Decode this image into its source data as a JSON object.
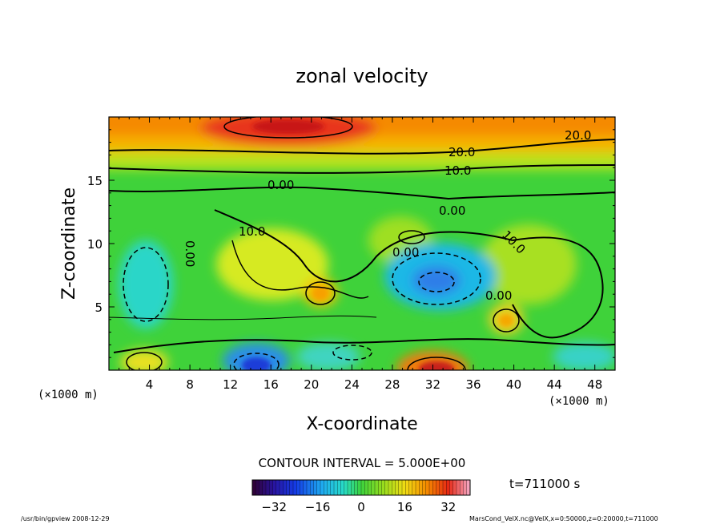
{
  "chart_data": {
    "type": "heatmap",
    "title": "zonal velocity",
    "xlabel": "X-coordinate",
    "ylabel": "Z-coordinate",
    "x_unit_left": "(×1000 m)",
    "x_unit_right": "(×1000 m)",
    "xlim": [
      0,
      50
    ],
    "ylim": [
      0,
      20
    ],
    "x_ticks": [
      "4",
      "8",
      "12",
      "16",
      "20",
      "24",
      "28",
      "32",
      "36",
      "40",
      "44",
      "48"
    ],
    "y_ticks": [
      "5",
      "10",
      "15"
    ],
    "contour_labels": [
      "20.0",
      "20.0",
      "10.0",
      "0.00",
      "0.00",
      "10.0",
      "10.0",
      "0.00",
      "0.00",
      "0.00"
    ],
    "contour_interval_text": "CONTOUR INTERVAL = 5.000E+00",
    "colorbar_ticks": [
      "−32",
      "−16",
      "0",
      "16",
      "32"
    ],
    "colorbar_range": [
      -40,
      40
    ],
    "time_label": "t=711000 s",
    "footer_left": "/usr/bin/gpview   2008-12-29",
    "footer_right": "MarsCond_VelX.nc@VelX,x=0:50000,z=0:20000,t=711000",
    "colors": {
      "background": "#ffffff",
      "field_base": "#3fd23a"
    }
  }
}
